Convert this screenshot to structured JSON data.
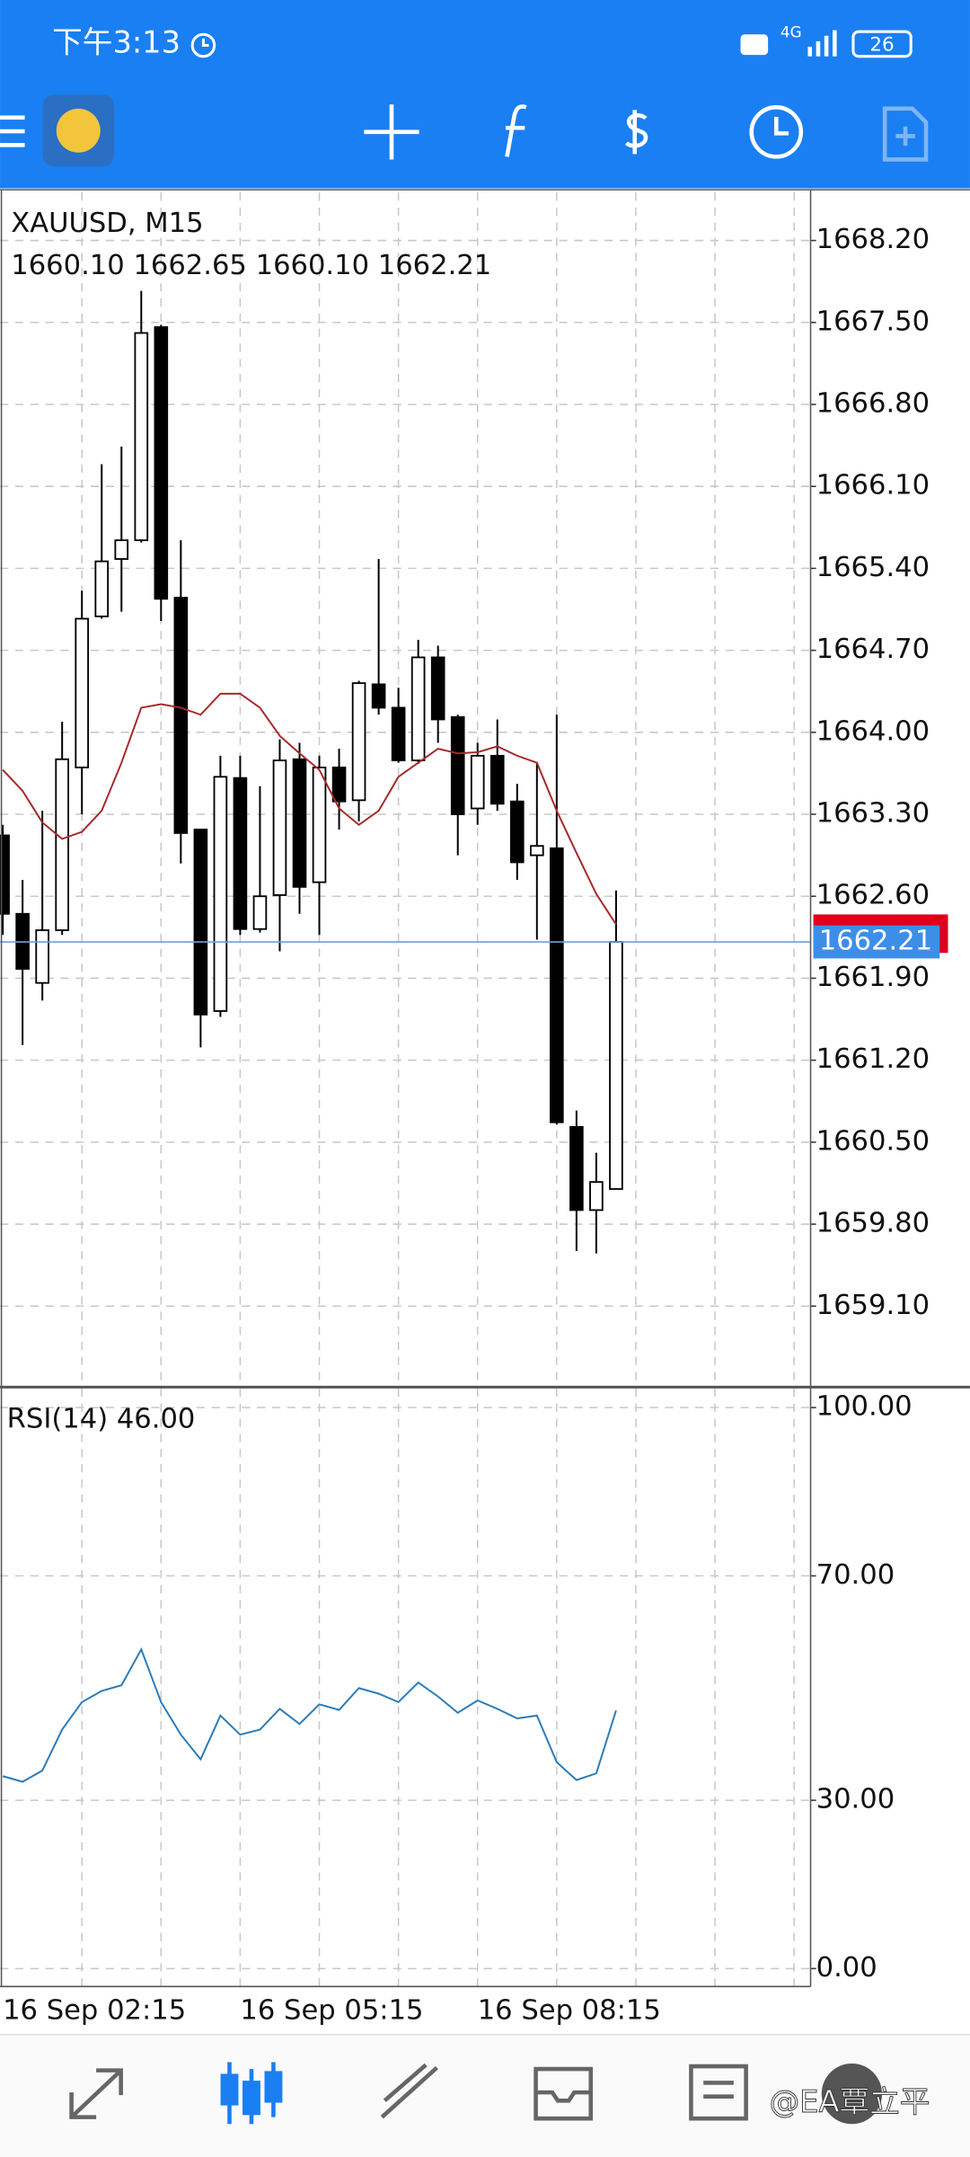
{
  "status_bar": {
    "time": "下午3:13",
    "network": "4G",
    "battery": "26"
  },
  "chart_data": [
    {
      "type": "candlestick",
      "title": "XAUUSD, M15",
      "subtitle": "1660.10 1662.65 1660.10 1662.21",
      "categories": [
        "16 Sep 02:15",
        null,
        null,
        null,
        null,
        null,
        null,
        null,
        null,
        null,
        null,
        null,
        "16 Sep 05:15",
        null,
        null,
        null,
        null,
        null,
        null,
        null,
        null,
        null,
        null,
        null,
        "16 Sep 08:15",
        null,
        null,
        null,
        null,
        null,
        null,
        null
      ],
      "open": [
        1663.12,
        1662.45,
        1661.86,
        1662.31,
        1663.7,
        1664.99,
        1665.48,
        1665.64,
        1667.46,
        1665.15,
        1663.17,
        1661.62,
        1663.61,
        1662.32,
        1662.61,
        1663.77,
        1662.72,
        1663.7,
        1663.42,
        1664.41,
        1664.21,
        1663.76,
        1664.64,
        1664.13,
        1663.35,
        1663.8,
        1663.41,
        1662.95,
        1663.01,
        1660.63,
        1659.92,
        1660.1
      ],
      "high": [
        1663.21,
        1662.74,
        1663.33,
        1664.09,
        1665.21,
        1666.29,
        1666.44,
        1667.77,
        1667.48,
        1665.64,
        1663.17,
        1663.8,
        1663.8,
        1663.54,
        1663.94,
        1663.91,
        1663.8,
        1663.86,
        1664.44,
        1665.48,
        1664.38,
        1664.79,
        1664.74,
        1664.15,
        1663.91,
        1664.11,
        1663.56,
        1663.74,
        1664.15,
        1660.77,
        1660.41,
        1662.65
      ],
      "low": [
        1662.27,
        1661.33,
        1661.71,
        1662.27,
        1663.3,
        1664.97,
        1665.03,
        1665.62,
        1664.95,
        1662.88,
        1661.31,
        1661.57,
        1662.27,
        1662.29,
        1662.13,
        1662.45,
        1662.27,
        1663.17,
        1663.24,
        1664.15,
        1663.74,
        1663.73,
        1663.91,
        1662.95,
        1663.21,
        1663.33,
        1662.74,
        1662.23,
        1660.65,
        1659.57,
        1659.55,
        1660.1
      ],
      "close": [
        1662.45,
        1661.98,
        1662.31,
        1663.77,
        1664.97,
        1665.46,
        1665.64,
        1667.41,
        1665.14,
        1663.14,
        1661.59,
        1663.62,
        1662.32,
        1662.6,
        1663.76,
        1662.68,
        1663.7,
        1663.41,
        1664.42,
        1664.21,
        1663.76,
        1664.64,
        1664.11,
        1663.3,
        1663.8,
        1663.39,
        1662.89,
        1663.03,
        1660.67,
        1659.92,
        1660.16,
        1662.21
      ],
      "overlay": {
        "type": "line",
        "color": "#a52a2a",
        "values": [
          1663.68,
          1663.5,
          1663.23,
          1663.09,
          1663.15,
          1663.33,
          1663.74,
          1664.21,
          1664.24,
          1664.21,
          1664.15,
          1664.33,
          1664.33,
          1664.21,
          1663.97,
          1663.82,
          1663.68,
          1663.35,
          1663.21,
          1663.33,
          1663.62,
          1663.74,
          1663.86,
          1663.82,
          1663.83,
          1663.88,
          1663.8,
          1663.74,
          1663.33,
          1662.97,
          1662.62,
          1662.36
        ]
      },
      "current_price": {
        "value": 1662.21,
        "label": "1662.21"
      },
      "ylim": [
        1658.42,
        1668.61
      ],
      "yticks": [
        {
          "value": 1668.2,
          "label": "1668.20"
        },
        {
          "value": 1667.5,
          "label": "1667.50"
        },
        {
          "value": 1666.8,
          "label": "1666.80"
        },
        {
          "value": 1666.1,
          "label": "1666.10"
        },
        {
          "value": 1665.4,
          "label": "1665.40"
        },
        {
          "value": 1664.7,
          "label": "1664.70"
        },
        {
          "value": 1664.0,
          "label": "1664.00"
        },
        {
          "value": 1663.3,
          "label": "1663.30"
        },
        {
          "value": 1662.6,
          "label": "1662.60"
        },
        {
          "value": 1661.9,
          "label": "1661.90"
        },
        {
          "value": 1661.2,
          "label": "1661.20"
        },
        {
          "value": 1660.5,
          "label": "1660.50"
        },
        {
          "value": 1659.8,
          "label": "1659.80"
        },
        {
          "value": 1659.1,
          "label": "1659.10"
        }
      ],
      "grid": true
    },
    {
      "type": "line",
      "title": "RSI(14) 46.00",
      "series": [
        {
          "color": "#2b7bb9",
          "values": [
            34.3,
            33.3,
            35.3,
            42.6,
            47.5,
            49.5,
            50.5,
            56.9,
            47.5,
            41.7,
            37.3,
            45.1,
            41.7,
            42.6,
            46.3,
            43.6,
            47.1,
            46.1,
            50.0,
            49.0,
            47.5,
            51.0,
            48.5,
            45.6,
            47.8,
            46.3,
            44.6,
            45.1,
            36.8,
            33.6,
            34.8,
            46.0
          ]
        }
      ],
      "ylim": [
        -3.2,
        103.4
      ],
      "yticks": [
        {
          "value": 100,
          "label": "100.00"
        },
        {
          "value": 70,
          "label": "70.00"
        },
        {
          "value": 30,
          "label": "30.00"
        },
        {
          "value": 0,
          "label": "0.00"
        }
      ],
      "grid": true
    }
  ],
  "watermark": "@EA覃立平"
}
